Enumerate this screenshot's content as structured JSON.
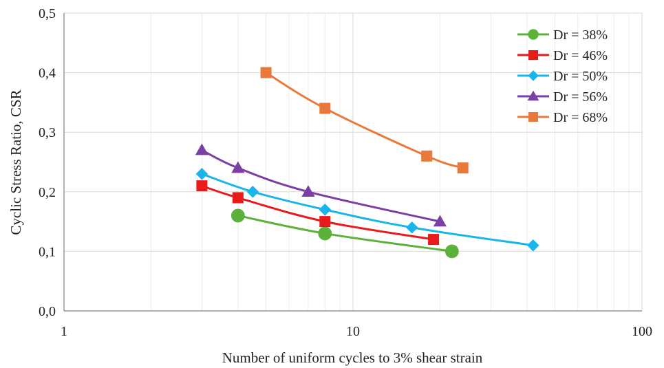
{
  "chart_data": {
    "type": "line",
    "xscale": "log",
    "xlim": [
      1,
      100
    ],
    "ylim": [
      0,
      0.5
    ],
    "xlabel": "Number of uniform cycles to 3% shear strain",
    "ylabel": "Cyclic Stress Ratio, CSR",
    "x_ticks": [
      "1",
      "10",
      "100"
    ],
    "y_ticks": [
      "0,0",
      "0,1",
      "0,2",
      "0,3",
      "0,4",
      "0,5"
    ],
    "grid": true,
    "legend_position": "top-right",
    "series": [
      {
        "name": "Dr = 38%",
        "color": "#5cb13a",
        "marker": "circle",
        "x": [
          4,
          8,
          22
        ],
        "y": [
          0.16,
          0.13,
          0.1
        ]
      },
      {
        "name": "Dr = 46%",
        "color": "#e81a1a",
        "marker": "square",
        "x": [
          3,
          4,
          8,
          19
        ],
        "y": [
          0.21,
          0.19,
          0.15,
          0.12
        ]
      },
      {
        "name": "Dr = 50%",
        "color": "#19b4ec",
        "marker": "diamond",
        "x": [
          3,
          4.5,
          8,
          16,
          42
        ],
        "y": [
          0.23,
          0.2,
          0.17,
          0.14,
          0.11
        ]
      },
      {
        "name": "Dr = 56%",
        "color": "#7b3fa6",
        "marker": "triangle",
        "x": [
          3,
          4,
          7,
          20
        ],
        "y": [
          0.27,
          0.24,
          0.2,
          0.15
        ]
      },
      {
        "name": "Dr = 68%",
        "color": "#e8793a",
        "marker": "square",
        "x": [
          5,
          8,
          18,
          24
        ],
        "y": [
          0.4,
          0.34,
          0.26,
          0.24
        ]
      }
    ]
  }
}
